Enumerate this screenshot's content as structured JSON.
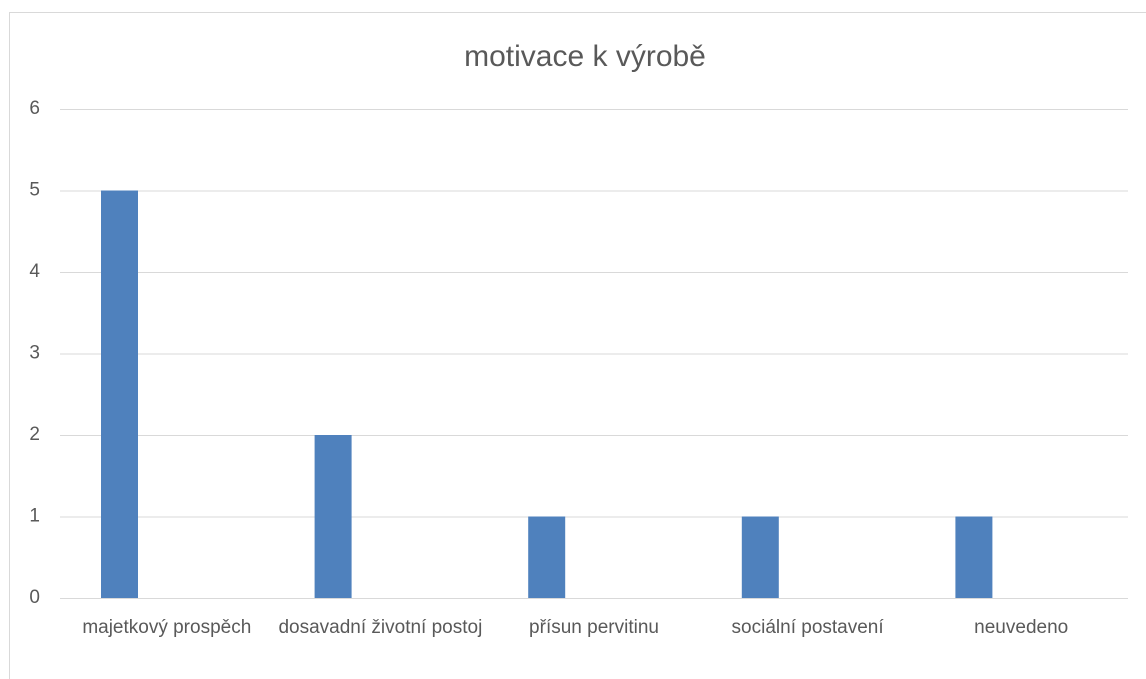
{
  "chart_data": {
    "type": "bar",
    "title": "motivace k výrobě",
    "categories": [
      "majetkový prospěch",
      "dosavadní životní postoj",
      "přísun pervitinu",
      "sociální postavení",
      "neuvedeno"
    ],
    "values": [
      5,
      2,
      1,
      1,
      1
    ],
    "color": "#4f81bd",
    "ylim": [
      0,
      6
    ],
    "yticks": [
      0,
      1,
      2,
      3,
      4,
      5,
      6
    ],
    "grid": true
  }
}
